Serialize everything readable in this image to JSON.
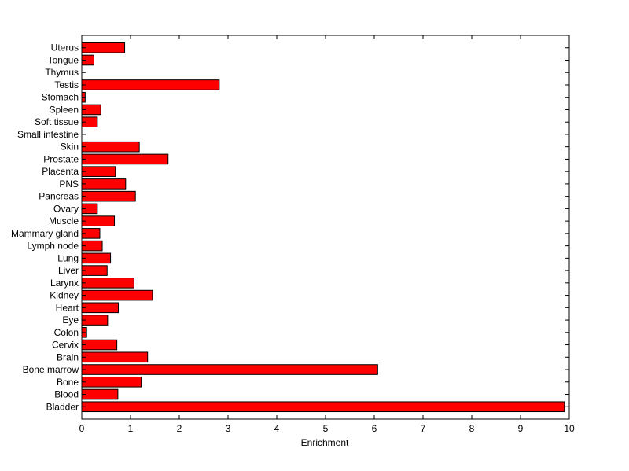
{
  "chart_data": {
    "type": "bar",
    "orientation": "horizontal",
    "categories": [
      "Bladder",
      "Blood",
      "Bone",
      "Bone marrow",
      "Brain",
      "Cervix",
      "Colon",
      "Eye",
      "Heart",
      "Kidney",
      "Larynx",
      "Liver",
      "Lung",
      "Lymph node",
      "Mammary gland",
      "Muscle",
      "Ovary",
      "Pancreas",
      "PNS",
      "Placenta",
      "Prostate",
      "Skin",
      "Small intestine",
      "Soft tissue",
      "Spleen",
      "Stomach",
      "Testis",
      "Thymus",
      "Tongue",
      "Uterus"
    ],
    "values": [
      9.9,
      0.74,
      1.22,
      6.07,
      1.35,
      0.72,
      0.1,
      0.53,
      0.75,
      1.45,
      1.07,
      0.52,
      0.59,
      0.42,
      0.37,
      0.67,
      0.32,
      1.1,
      0.9,
      0.69,
      1.77,
      1.18,
      0,
      0.32,
      0.39,
      0.07,
      2.82,
      0,
      0.25,
      0.88
    ],
    "xlabel": "Enrichment",
    "xlim": [
      0,
      10
    ],
    "xticks": [
      "0",
      "1",
      "2",
      "3",
      "4",
      "5",
      "6",
      "7",
      "8",
      "9",
      "10"
    ],
    "bar_color": "#ff0000",
    "grid": false
  }
}
